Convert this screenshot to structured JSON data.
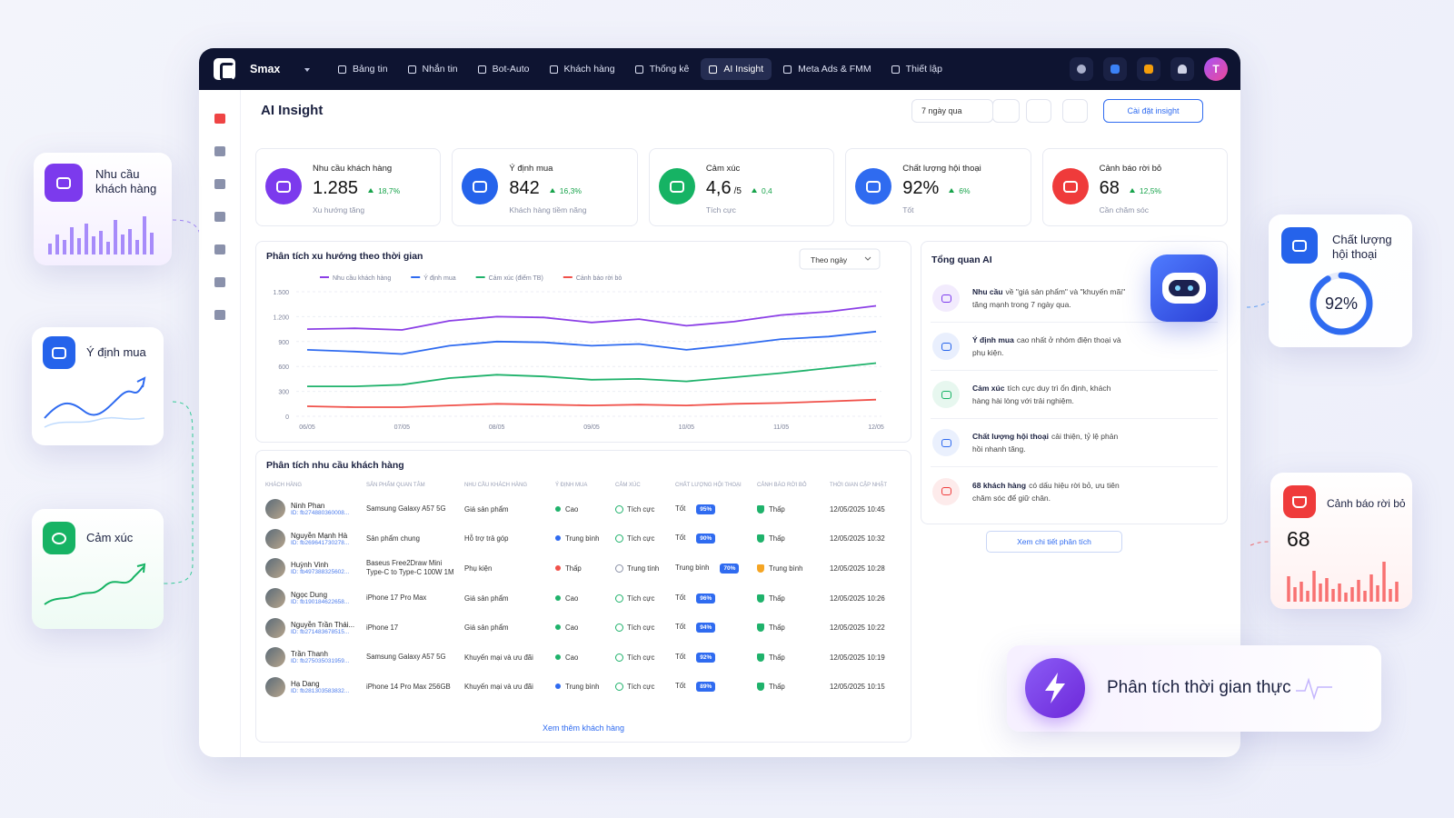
{
  "nav": {
    "brand": "Smax",
    "items": [
      "Bảng tin",
      "Nhắn tin",
      "Bot-Auto",
      "Khách hàng",
      "Thống kê",
      "AI Insight",
      "Meta Ads & FMM",
      "Thiết lập"
    ],
    "active": 5,
    "avatar": "T"
  },
  "header": {
    "title": "AI Insight",
    "range": "7 ngày qua",
    "settings_button": "Cài đặt insight"
  },
  "kpis": [
    {
      "label": "Nhu cầu khách hàng",
      "value": "1.285",
      "change": "18,7%",
      "note": "Xu hướng tăng",
      "color": "#7c3aed"
    },
    {
      "label": "Ý định mua",
      "value": "842",
      "change": "16,3%",
      "note": "Khách hàng tiềm năng",
      "color": "#2563eb"
    },
    {
      "label": "Cảm xúc",
      "value": "4,6",
      "unit": "/5",
      "change": "0,4",
      "note": "Tích cực",
      "color": "#16b364"
    },
    {
      "label": "Chất lượng hội thoại",
      "value": "92%",
      "change": "6%",
      "note": "Tốt",
      "color": "#2f6bf0"
    },
    {
      "label": "Cảnh báo rời bỏ",
      "value": "68",
      "change": "12,5%",
      "note": "Cần chăm sóc",
      "color": "#ef3b3b"
    }
  ],
  "trend": {
    "type": "line",
    "title": "Phân tích xu hướng theo thời gian",
    "granularity": "Theo ngày",
    "categories": [
      "06/05",
      null,
      "07/05",
      null,
      "08/05",
      null,
      "09/05",
      null,
      "10/05",
      null,
      "11/05",
      null,
      "12/05"
    ],
    "ylim": [
      0,
      1500
    ],
    "yticks": [
      0,
      300,
      600,
      900,
      {
        "value": 1200,
        "label": "1.200"
      },
      {
        "value": 1500,
        "label": "1.500"
      }
    ],
    "grid": true,
    "series": [
      {
        "name": "Nhu cầu khách hàng",
        "color": "#8b3fe6",
        "values": [
          1050,
          1060,
          1040,
          1150,
          1200,
          1190,
          1130,
          1170,
          1090,
          1140,
          1220,
          1260,
          1330
        ]
      },
      {
        "name": "Ý định mua",
        "color": "#2f6bf0",
        "values": [
          800,
          780,
          750,
          850,
          900,
          890,
          850,
          870,
          800,
          860,
          930,
          960,
          1020
        ]
      },
      {
        "name": "Cảm xúc (điểm TB)",
        "color": "#1fb26b",
        "values": [
          360,
          360,
          380,
          460,
          500,
          480,
          440,
          450,
          420,
          470,
          520,
          580,
          640
        ]
      },
      {
        "name": "Cảnh báo rời bỏ",
        "color": "#f0514a",
        "values": [
          120,
          110,
          110,
          130,
          150,
          140,
          130,
          140,
          130,
          150,
          160,
          180,
          200
        ]
      }
    ]
  },
  "table": {
    "title": "Phân tích nhu cầu khách hàng",
    "columns": [
      "KHÁCH HÀNG",
      "SẢN PHẨM QUAN TÂM",
      "NHU CẦU KHÁCH HÀNG",
      "Ý ĐỊNH MUA",
      "CẢM XÚC",
      "CHẤT LƯỢNG HỘI THOẠI",
      "CẢNH BÁO RỜI BỎ",
      "THỜI GIAN CẬP NHẬT"
    ],
    "rows": [
      {
        "name": "Ninh Phan",
        "id": "ID: fb274880360008...",
        "product": "Samsung Galaxy A57 5G",
        "need": "Giá sản phẩm",
        "intent": "Cao",
        "intent_color": "#1fb26b",
        "sentiment": "Tích cực",
        "quality": "Tốt",
        "score": "95%",
        "churn": "Thấp",
        "churn_color": "#1fb26b",
        "time": "12/05/2025 10:45"
      },
      {
        "name": "Nguyễn Mạnh Hà",
        "id": "ID: fb269641730278...",
        "product": "Sản phẩm chung",
        "need": "Hỗ trợ trả góp",
        "intent": "Trung bình",
        "intent_color": "#2f6bf0",
        "sentiment": "Tích cực",
        "quality": "Tốt",
        "score": "90%",
        "churn": "Thấp",
        "churn_color": "#1fb26b",
        "time": "12/05/2025 10:32"
      },
      {
        "name": "Huỳnh Vinh",
        "id": "ID: fb497388325602...",
        "product": "Baseus Free2Draw Mini Type-C to Type-C 100W 1M",
        "need": "Phụ kiện",
        "intent": "Thấp",
        "intent_color": "#f0514a",
        "sentiment": "Trung tính",
        "quality": "Trung bình",
        "score": "70%",
        "churn": "Trung bình",
        "churn_color": "#f5a524",
        "time": "12/05/2025 10:28"
      },
      {
        "name": "Ngọc Dung",
        "id": "ID: fb190184622658...",
        "product": "iPhone 17 Pro Max",
        "need": "Giá sản phẩm",
        "intent": "Cao",
        "intent_color": "#1fb26b",
        "sentiment": "Tích cực",
        "quality": "Tốt",
        "score": "96%",
        "churn": "Thấp",
        "churn_color": "#1fb26b",
        "time": "12/05/2025 10:26"
      },
      {
        "name": "Nguyễn Trần Thái...",
        "id": "ID: fb271483678515...",
        "product": "iPhone 17",
        "need": "Giá sản phẩm",
        "intent": "Cao",
        "intent_color": "#1fb26b",
        "sentiment": "Tích cực",
        "quality": "Tốt",
        "score": "94%",
        "churn": "Thấp",
        "churn_color": "#1fb26b",
        "time": "12/05/2025 10:22"
      },
      {
        "name": "Trần Thanh",
        "id": "ID: fb275035031959...",
        "product": "Samsung Galaxy A57 5G",
        "need": "Khuyến mại và ưu đãi",
        "intent": "Cao",
        "intent_color": "#1fb26b",
        "sentiment": "Tích cực",
        "quality": "Tốt",
        "score": "92%",
        "churn": "Thấp",
        "churn_color": "#1fb26b",
        "time": "12/05/2025 10:19"
      },
      {
        "name": "Hạ Dang",
        "id": "ID: fb281303583832...",
        "product": "iPhone 14 Pro Max 256GB",
        "need": "Khuyến mại và ưu đãi",
        "intent": "Trung bình",
        "intent_color": "#2f6bf0",
        "sentiment": "Tích cực",
        "quality": "Tốt",
        "score": "89%",
        "churn": "Thấp",
        "churn_color": "#1fb26b",
        "time": "12/05/2025 10:15"
      }
    ],
    "more": "Xem thêm khách hàng"
  },
  "ai": {
    "title": "Tổng quan AI",
    "items": [
      {
        "lead": "Nhu cầu",
        "text": "về \"giá sản phẩm\" và \"khuyến mãi\" tăng mạnh trong 7 ngày qua.",
        "color": "#7c3aed"
      },
      {
        "lead": "Ý định mua",
        "text": "cao nhất ở nhóm điện thoại và phụ kiện.",
        "color": "#2563eb"
      },
      {
        "lead": "Cảm xúc",
        "text": "tích cực duy trì ổn định, khách hàng hài lòng với trải nghiệm.",
        "color": "#16b364"
      },
      {
        "lead": "Chất lượng hội thoại",
        "text": "cải thiện, tỷ lệ phản hồi nhanh tăng.",
        "color": "#2f6bf0"
      },
      {
        "lead": "68 khách hàng",
        "text": "có dấu hiệu rời bỏ, ưu tiên chăm sóc để giữ chân.",
        "color": "#ef3b3b"
      }
    ],
    "link": "Xem chi tiết phân tích"
  },
  "floating": {
    "demand": {
      "title": "Nhu cầu khách hàng"
    },
    "intent": {
      "title": "Ý định mua"
    },
    "sentiment": {
      "title": "Cảm xúc"
    },
    "quality": {
      "title": "Chất lượng hội thoại",
      "value": "92%"
    },
    "churn": {
      "title": "Cảnh báo rời bỏ",
      "value": "68"
    },
    "realtime": {
      "title": "Phân tích thời gian thực"
    }
  }
}
